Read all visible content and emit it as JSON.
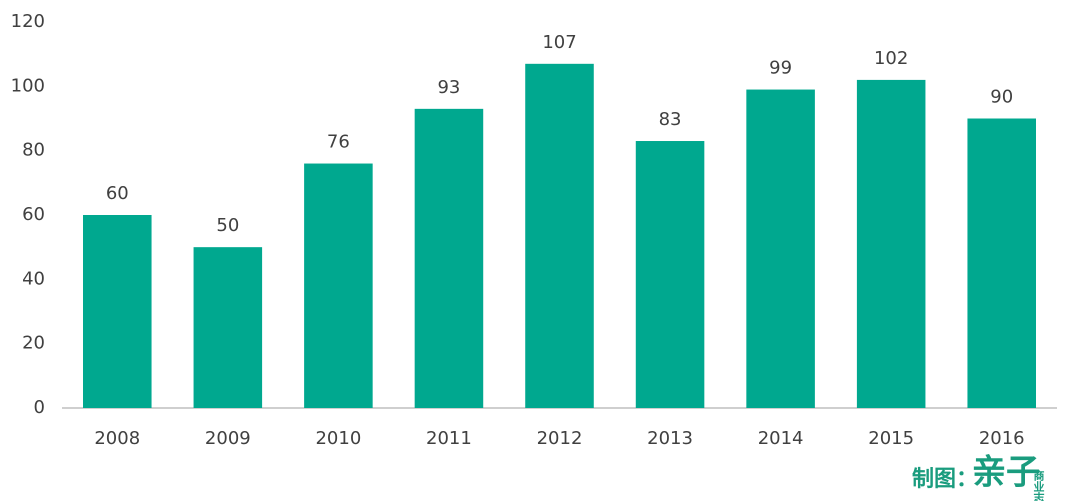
{
  "chart_data": {
    "type": "bar",
    "categories": [
      "2008",
      "2009",
      "2010",
      "2011",
      "2012",
      "2013",
      "2014",
      "2015",
      "2016"
    ],
    "values": [
      60,
      50,
      76,
      93,
      107,
      83,
      99,
      102,
      90
    ],
    "color": "#00a88f",
    "ylim": [
      0,
      120
    ],
    "yticks": [
      0,
      20,
      40,
      60,
      80,
      100,
      120
    ],
    "grid": false,
    "data_labels": true
  },
  "credit": {
    "label": "制图：",
    "brand": "亲子",
    "sub": "商业志"
  }
}
